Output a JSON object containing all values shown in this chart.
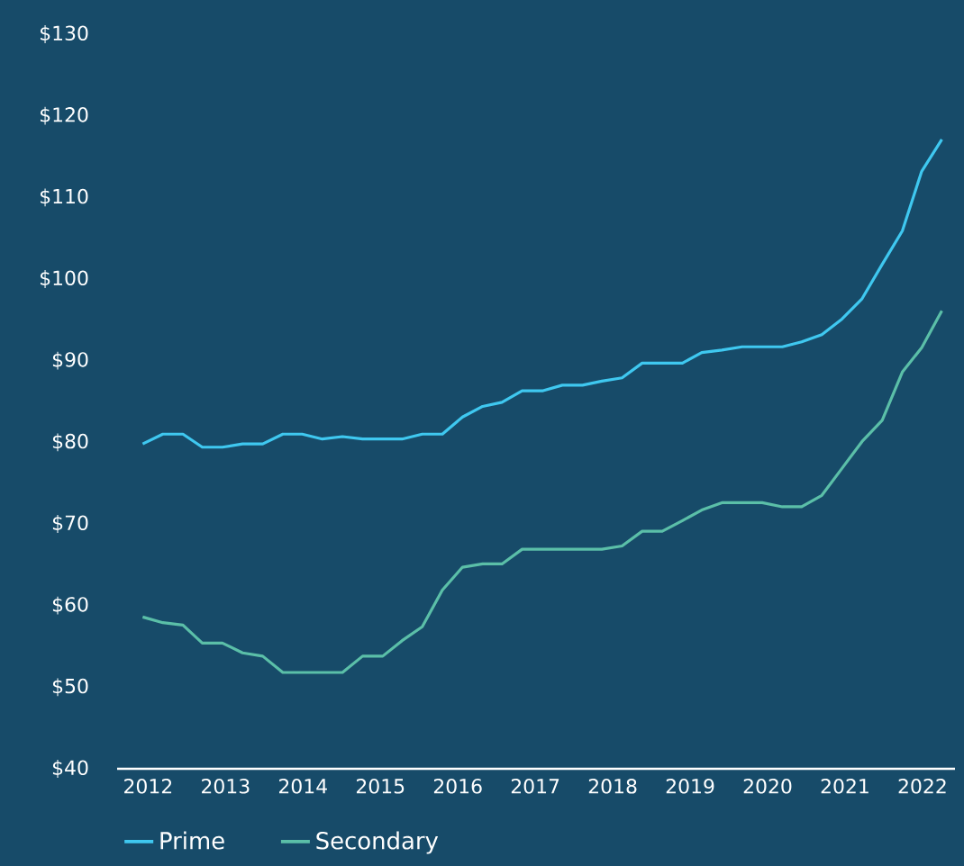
{
  "chart_data": {
    "type": "line",
    "x": [
      2011.93,
      2012.19,
      2012.45,
      2012.7,
      2012.96,
      2013.22,
      2013.48,
      2013.74,
      2013.99,
      2014.25,
      2014.51,
      2014.77,
      2015.03,
      2015.28,
      2015.54,
      2015.8,
      2016.06,
      2016.32,
      2016.57,
      2016.83,
      2017.09,
      2017.35,
      2017.61,
      2017.86,
      2018.12,
      2018.38,
      2018.64,
      2018.9,
      2019.15,
      2019.41,
      2019.67,
      2019.93,
      2020.19,
      2020.44,
      2020.7,
      2020.96,
      2021.22,
      2021.48,
      2021.74,
      2021.99,
      2022.25
    ],
    "series": [
      {
        "name": "Prime",
        "color": "#3fc8f0",
        "values": [
          79.8,
          81.0,
          81.0,
          79.4,
          79.4,
          79.8,
          79.8,
          81.0,
          81.0,
          80.4,
          80.7,
          80.4,
          80.4,
          80.4,
          81.0,
          81.0,
          83.1,
          84.4,
          84.9,
          86.3,
          86.3,
          87.0,
          87.0,
          87.5,
          87.9,
          89.7,
          89.7,
          89.7,
          91.0,
          91.3,
          91.7,
          91.7,
          91.7,
          92.3,
          93.2,
          95.1,
          97.6,
          101.8,
          105.9,
          113.2,
          117.1
        ]
      },
      {
        "name": "Secondary",
        "color": "#5bbfa8",
        "values": [
          58.6,
          57.9,
          57.6,
          55.4,
          55.4,
          54.2,
          53.8,
          51.8,
          51.8,
          51.8,
          51.8,
          53.8,
          53.8,
          55.7,
          57.4,
          61.9,
          64.7,
          65.1,
          65.1,
          66.9,
          66.9,
          66.9,
          66.9,
          66.9,
          67.3,
          69.1,
          69.1,
          70.4,
          71.7,
          72.6,
          72.6,
          72.6,
          72.1,
          72.1,
          73.5,
          76.8,
          80.1,
          82.7,
          88.6,
          91.6,
          96.1
        ]
      }
    ],
    "xlim": [
      2011.6,
      2022.42
    ],
    "xticks": [
      2012,
      2013,
      2014,
      2015,
      2016,
      2017,
      2018,
      2019,
      2020,
      2021,
      2022
    ],
    "ylim": [
      40,
      130
    ],
    "yticks": [
      {
        "value": 40,
        "label": "$40"
      },
      {
        "value": 50,
        "label": "$50"
      },
      {
        "value": 60,
        "label": "$60"
      },
      {
        "value": 70,
        "label": "$70"
      },
      {
        "value": 80,
        "label": "$80"
      },
      {
        "value": 90,
        "label": "$90"
      },
      {
        "value": 100,
        "label": "$100"
      },
      {
        "value": 110,
        "label": "$110"
      },
      {
        "value": 120,
        "label": "$120"
      },
      {
        "value": 130,
        "label": "$130"
      }
    ],
    "grid": false,
    "legend": "bottom left",
    "marker": "none",
    "line_style": "solid"
  }
}
